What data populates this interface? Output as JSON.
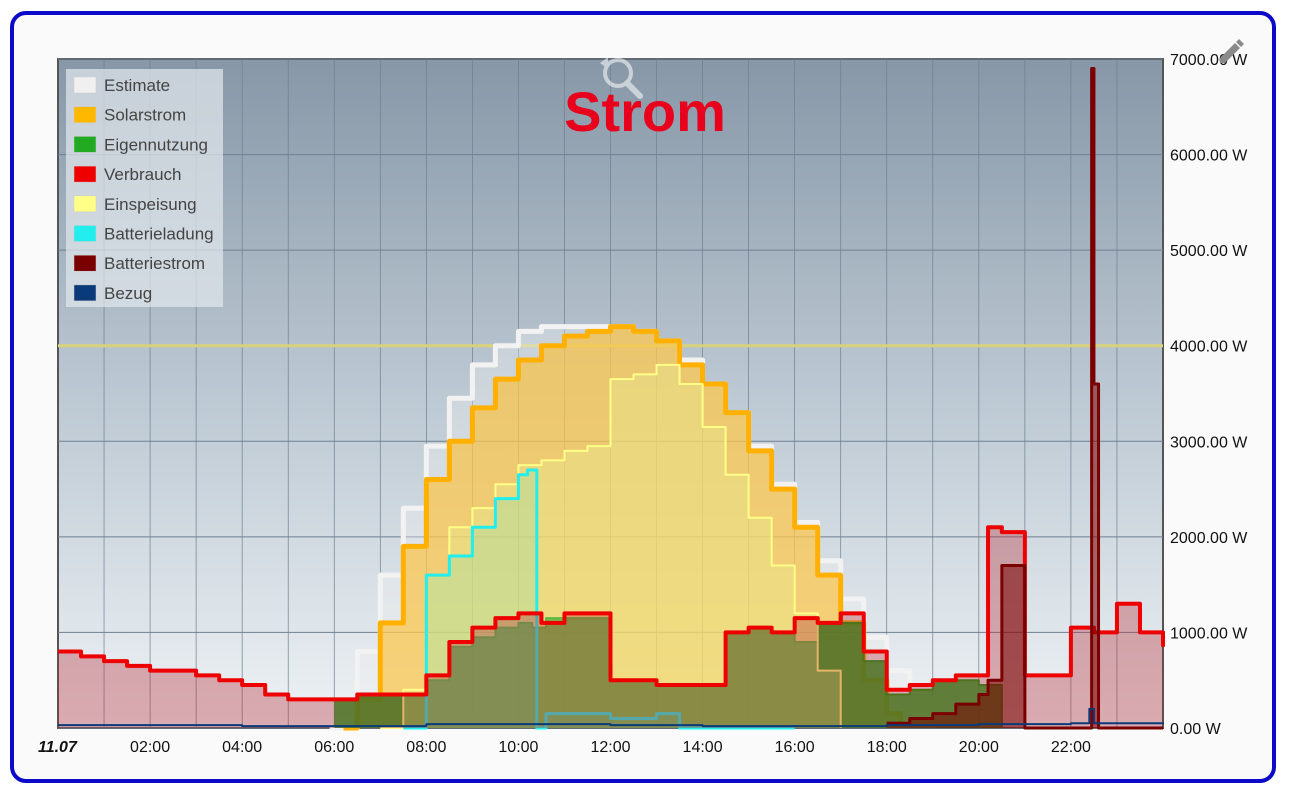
{
  "chart_data": {
    "type": "area",
    "title": "Strom",
    "ylim": [
      0,
      7000
    ],
    "ytick_labels": [
      "0.00 W",
      "1000.00 W",
      "2000.00 W",
      "3000.00 W",
      "4000.00 W",
      "5000.00 W",
      "6000.00 W",
      "7000.00 W"
    ],
    "ytick_values": [
      0,
      1000,
      2000,
      3000,
      4000,
      5000,
      6000,
      7000
    ],
    "xlim": [
      0,
      24
    ],
    "xtick_labels": [
      "11.07",
      "02:00",
      "04:00",
      "06:00",
      "08:00",
      "10:00",
      "12:00",
      "14:00",
      "16:00",
      "18:00",
      "20:00",
      "22:00"
    ],
    "xtick_values": [
      0,
      2,
      4,
      6,
      8,
      10,
      12,
      14,
      16,
      18,
      20,
      22
    ],
    "grid": true,
    "legend_position": "top-left",
    "reference_line": 4000,
    "colors": {
      "Estimate": "#f0f0f0",
      "Solarstrom": "#ffb800",
      "Eigennutzung": "#22aa22",
      "Verbrauch": "#ee0000",
      "Einspeisung": "#ffff88",
      "Batterieladung": "#22eeee",
      "Batteriestrom": "#7a0000",
      "Bezug": "#0a3a7a"
    },
    "series": [
      {
        "name": "Estimate",
        "x": [
          5.9,
          6.5,
          7,
          7.5,
          8,
          8.5,
          9,
          9.5,
          10,
          10.5,
          11,
          11.5,
          12,
          12.5,
          13,
          13.5,
          14,
          14.5,
          15,
          15.5,
          16,
          16.5,
          17,
          17.5,
          18,
          18.5,
          19
        ],
        "values": [
          0,
          800,
          1600,
          2300,
          2950,
          3450,
          3800,
          4000,
          4150,
          4200,
          4200,
          4200,
          4200,
          4150,
          4050,
          3850,
          3600,
          3300,
          2950,
          2550,
          2150,
          1750,
          1350,
          950,
          600,
          300,
          0
        ]
      },
      {
        "name": "Solarstrom",
        "x": [
          6.2,
          6.5,
          7,
          7.5,
          8,
          8.5,
          9,
          9.5,
          10,
          10.5,
          11,
          11.5,
          12,
          12.5,
          13,
          13.5,
          14,
          14.5,
          15,
          15.5,
          16,
          16.5,
          17,
          17.5,
          18,
          18.3
        ],
        "values": [
          0,
          300,
          1100,
          1900,
          2600,
          3000,
          3350,
          3650,
          3850,
          4000,
          4100,
          4150,
          4200,
          4150,
          4050,
          3800,
          3600,
          3300,
          2900,
          2500,
          2100,
          1600,
          1100,
          500,
          150,
          0
        ]
      },
      {
        "name": "Eigennutzung",
        "x": [
          6,
          6.5,
          7,
          7.5,
          8,
          8.5,
          9,
          9.5,
          10,
          10.3,
          10.6,
          11,
          11.5,
          12,
          12.5,
          13,
          13.5,
          14,
          14.5,
          15,
          15.5,
          16,
          16.5,
          17,
          17.5,
          18,
          18.5,
          19,
          19.5,
          20,
          20.5
        ],
        "values": [
          300,
          350,
          350,
          350,
          500,
          850,
          950,
          1050,
          1100,
          1050,
          1150,
          1150,
          1150,
          500,
          500,
          450,
          450,
          450,
          1000,
          1050,
          1000,
          900,
          1100,
          1100,
          700,
          350,
          400,
          500,
          500,
          450,
          0
        ]
      },
      {
        "name": "Verbrauch",
        "x": [
          0,
          0.5,
          1,
          1.5,
          2,
          2.5,
          3,
          3.5,
          4,
          4.5,
          5,
          5.5,
          6,
          6.5,
          7,
          7.5,
          8,
          8.5,
          9,
          9.5,
          10,
          10.5,
          11,
          11.5,
          12,
          12.5,
          13,
          13.5,
          14,
          14.5,
          15,
          15.5,
          16,
          16.5,
          17,
          17.5,
          18,
          18.5,
          19,
          19.5,
          20,
          20.2,
          20.5,
          21,
          21.5,
          22,
          22.5,
          23,
          23.5,
          24
        ],
        "values": [
          800,
          750,
          700,
          650,
          600,
          600,
          550,
          500,
          450,
          350,
          300,
          300,
          300,
          350,
          350,
          350,
          550,
          900,
          1050,
          1150,
          1200,
          1100,
          1200,
          1200,
          500,
          500,
          450,
          450,
          450,
          1000,
          1050,
          1000,
          1150,
          1100,
          1200,
          800,
          400,
          450,
          500,
          550,
          550,
          2100,
          2050,
          550,
          550,
          1050,
          1000,
          1300,
          1000,
          850
        ]
      },
      {
        "name": "Einspeisung",
        "x": [
          7,
          7.5,
          8,
          8.5,
          9,
          9.5,
          10,
          10.5,
          11,
          11.5,
          12,
          12.5,
          13,
          13.5,
          14,
          14.5,
          15,
          15.5,
          16,
          16.5,
          17
        ],
        "values": [
          0,
          400,
          1600,
          2100,
          2300,
          2550,
          2750,
          2800,
          2900,
          2950,
          3650,
          3700,
          3800,
          3600,
          3150,
          2650,
          2200,
          1700,
          1200,
          600,
          0
        ]
      },
      {
        "name": "Batterieladung",
        "x": [
          7.5,
          8,
          8.5,
          9,
          9.5,
          10,
          10.2,
          10.4,
          10.6,
          11,
          11.5,
          12,
          12.5,
          13,
          13.5,
          14,
          15,
          16
        ],
        "values": [
          0,
          1600,
          1800,
          2100,
          2400,
          2650,
          2700,
          0,
          150,
          150,
          150,
          100,
          100,
          150,
          0,
          0,
          0,
          0
        ]
      },
      {
        "name": "Batteriestrom",
        "x": [
          18,
          18.5,
          19,
          19.5,
          20,
          20.2,
          20.5,
          21,
          21.5,
          22,
          22.4,
          22.45,
          22.5,
          22.6,
          23,
          24
        ],
        "values": [
          50,
          100,
          150,
          250,
          350,
          500,
          1700,
          0,
          0,
          0,
          0,
          6900,
          3600,
          0,
          0,
          0
        ]
      },
      {
        "name": "Bezug",
        "x": [
          0,
          2,
          4,
          6,
          8,
          10,
          12,
          14,
          16,
          18,
          20,
          22,
          22.4,
          22.5,
          24
        ],
        "values": [
          30,
          30,
          20,
          20,
          40,
          40,
          30,
          20,
          20,
          30,
          40,
          50,
          200,
          50,
          40
        ]
      }
    ]
  },
  "toolbar": {
    "zoom_reset_icon": "zoom-reset-icon",
    "edit_icon": "pencil-icon"
  }
}
